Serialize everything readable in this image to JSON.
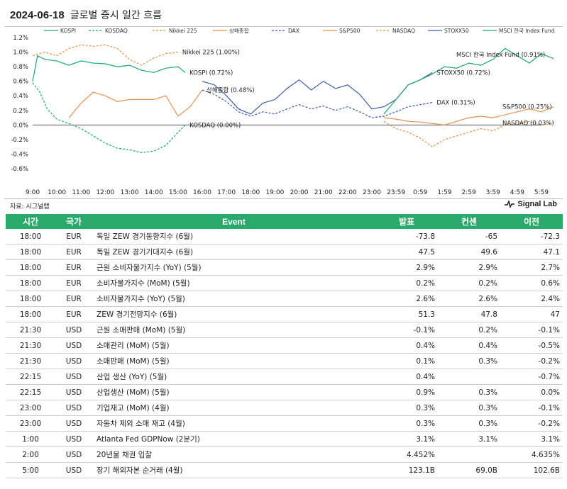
{
  "header": {
    "date": "2024-06-18",
    "title": "글로벌 증시 일간 흐름"
  },
  "source": "자료: 시그널랩",
  "brand": "Signal Lab",
  "chart_data": {
    "type": "line",
    "legend": [
      "KOSPI",
      "KOSDAQ",
      "Nikkei 225",
      "상해종합",
      "DAX",
      "S&P500",
      "NASDAQ",
      "STOXX50",
      "MSCI 한국 Index Fund"
    ],
    "colors": {
      "KOSPI": "#17a873",
      "KOSDAQ": "#17a873",
      "Nikkei 225": "#e3914e",
      "상해종합": "#e3914e",
      "DAX": "#3d5ba8",
      "S&P500": "#e3914e",
      "NASDAQ": "#e3914e",
      "STOXX50": "#3d5ba8",
      "MSCI 한국 Index Fund": "#17a873"
    },
    "x_ticks": [
      "9:00",
      "10:00",
      "11:00",
      "12:00",
      "13:00",
      "14:00",
      "15:00",
      "16:00",
      "17:00",
      "18:00",
      "19:00",
      "20:00",
      "21:00",
      "22:00",
      "23:00",
      "23:59",
      "0:59",
      "1:59",
      "2:59",
      "3:59",
      "4:59",
      "5:59"
    ],
    "y_ticks": [
      "1.2%",
      "1.0%",
      "0.8%",
      "0.6%",
      "0.4%",
      "0.2%",
      "0.0%",
      "-0.2%",
      "-0.4%",
      "-0.6%"
    ],
    "ylim": [
      -0.6,
      1.2
    ],
    "end_labels": [
      "Nikkei 225 (1.00%)",
      "KOSPI (0.72%)",
      "상해종합 (0.48%)",
      "KOSDAQ (0.00%)",
      "MSCI 한국 Index Fund (0.91%)",
      "STOXX50 (0.72%)",
      "DAX (0.31%)",
      "S&P500 (0.25%)",
      "NASDAQ (0.03%)"
    ],
    "series": [
      {
        "name": "KOSPI",
        "x": [
          0,
          0.2,
          0.5,
          1,
          1.5,
          2,
          2.5,
          3,
          3.5,
          4,
          4.5,
          5,
          5.5,
          6,
          6.3
        ],
        "y": [
          0.6,
          0.95,
          0.9,
          0.88,
          0.82,
          0.88,
          0.85,
          0.84,
          0.8,
          0.82,
          0.75,
          0.72,
          0.78,
          0.8,
          0.72
        ]
      },
      {
        "name": "KOSDAQ",
        "x": [
          0,
          0.3,
          0.6,
          1,
          1.5,
          2,
          2.5,
          3,
          3.5,
          4,
          4.5,
          5,
          5.5,
          6,
          6.3
        ],
        "y": [
          0.58,
          0.45,
          0.22,
          0.08,
          0.02,
          -0.05,
          -0.15,
          -0.25,
          -0.32,
          -0.34,
          -0.38,
          -0.36,
          -0.28,
          -0.1,
          0.0
        ]
      },
      {
        "name": "Nikkei 225",
        "x": [
          0,
          0.5,
          1,
          1.5,
          2,
          2.5,
          3,
          3.5,
          4,
          4.5,
          5,
          5.5,
          6
        ],
        "y": [
          0.95,
          1.0,
          0.95,
          1.05,
          1.1,
          1.08,
          1.1,
          1.05,
          0.9,
          0.82,
          0.92,
          0.98,
          1.0
        ]
      },
      {
        "name": "상해종합",
        "x": [
          1.5,
          2,
          2.5,
          3,
          3.5,
          4,
          4.5,
          5,
          5.5,
          6,
          6.5,
          7
        ],
        "y": [
          0.1,
          0.3,
          0.45,
          0.4,
          0.32,
          0.35,
          0.35,
          0.35,
          0.4,
          0.12,
          0.25,
          0.48
        ]
      },
      {
        "name": "DAX",
        "x": [
          7,
          7.5,
          8,
          8.5,
          9,
          9.5,
          10,
          10.5,
          11,
          11.5,
          12,
          12.5,
          13,
          13.5,
          14,
          14.5,
          15,
          15.5,
          16,
          16.5
        ],
        "y": [
          0.48,
          0.42,
          0.32,
          0.18,
          0.12,
          0.18,
          0.15,
          0.22,
          0.28,
          0.22,
          0.26,
          0.2,
          0.25,
          0.18,
          0.1,
          0.12,
          0.18,
          0.25,
          0.28,
          0.31
        ]
      },
      {
        "name": "STOXX50",
        "x": [
          7,
          7.5,
          8,
          8.5,
          9,
          9.5,
          10,
          10.5,
          11,
          11.5,
          12,
          12.5,
          13,
          13.5,
          14,
          14.5,
          15,
          15.5,
          16,
          16.5
        ],
        "y": [
          0.6,
          0.55,
          0.4,
          0.22,
          0.15,
          0.3,
          0.35,
          0.5,
          0.62,
          0.48,
          0.6,
          0.5,
          0.55,
          0.42,
          0.22,
          0.25,
          0.35,
          0.55,
          0.62,
          0.72
        ]
      },
      {
        "name": "S&P500",
        "x": [
          14.5,
          15,
          15.5,
          16,
          16.5,
          17,
          17.5,
          18,
          18.5,
          19,
          19.5,
          20,
          20.5,
          21,
          21.5
        ],
        "y": [
          0.1,
          0.08,
          0.05,
          0.04,
          0.02,
          0.0,
          0.05,
          0.1,
          0.12,
          0.1,
          0.14,
          0.18,
          0.22,
          0.18,
          0.25
        ]
      },
      {
        "name": "NASDAQ",
        "x": [
          14.5,
          15,
          15.5,
          16,
          16.5,
          17,
          17.5,
          18,
          18.5,
          19,
          19.5,
          20,
          20.5,
          21,
          21.5
        ],
        "y": [
          0.05,
          -0.05,
          -0.1,
          -0.18,
          -0.3,
          -0.2,
          -0.15,
          -0.1,
          -0.05,
          -0.08,
          0.0,
          0.02,
          0.05,
          0.0,
          0.03
        ]
      },
      {
        "name": "MSCI 한국 Index Fund",
        "x": [
          14.5,
          15,
          15.5,
          16,
          16.5,
          17,
          17.5,
          18,
          18.5,
          19,
          19.5,
          20,
          20.5,
          21,
          21.5
        ],
        "y": [
          0.15,
          0.35,
          0.55,
          0.62,
          0.7,
          0.8,
          0.78,
          0.85,
          0.82,
          0.9,
          1.05,
          0.95,
          0.85,
          0.98,
          0.91
        ]
      }
    ]
  },
  "table": {
    "headers": [
      "시간",
      "국가",
      "Event",
      "발표",
      "컨센",
      "이전"
    ],
    "rows": [
      [
        "18:00",
        "EUR",
        "독일 ZEW 경기동향지수 (6월)",
        "-73.8",
        "-65",
        "-72.3"
      ],
      [
        "18:00",
        "EUR",
        "독일 ZEW 경기기대지수 (6월)",
        "47.5",
        "49.6",
        "47.1"
      ],
      [
        "18:00",
        "EUR",
        "근원 소비자물가지수 (YoY) (5월)",
        "2.9%",
        "2.9%",
        "2.7%"
      ],
      [
        "18:00",
        "EUR",
        "소비자물가지수 (MoM) (5월)",
        "0.2%",
        "0.2%",
        "0.6%"
      ],
      [
        "18:00",
        "EUR",
        "소비자물가지수 (YoY) (5월)",
        "2.6%",
        "2.6%",
        "2.4%"
      ],
      [
        "18:00",
        "EUR",
        "ZEW 경기전망지수 (6월)",
        "51.3",
        "47.8",
        "47"
      ],
      [
        "21:30",
        "USD",
        "근원 소매판매 (MoM) (5월)",
        "-0.1%",
        "0.2%",
        "-0.1%"
      ],
      [
        "21:30",
        "USD",
        "소매관리 (MoM) (5월)",
        "0.4%",
        "0.4%",
        "-0.5%"
      ],
      [
        "21:30",
        "USD",
        "소매판매 (MoM) (5월)",
        "0.1%",
        "0.3%",
        "-0.2%"
      ],
      [
        "22:15",
        "USD",
        "산업 생산 (YoY) (5월)",
        "0.4%",
        "",
        "-0.7%"
      ],
      [
        "22:15",
        "USD",
        "산업생산 (MoM) (5월)",
        "0.9%",
        "0.3%",
        "0.0%"
      ],
      [
        "23:00",
        "USD",
        "기업재고 (MoM) (4월)",
        "0.3%",
        "0.3%",
        "-0.1%"
      ],
      [
        "23:00",
        "USD",
        "자동차 제외 소매 재고 (4월)",
        "0.3%",
        "0.3%",
        "-0.2%"
      ],
      [
        "1:00",
        "USD",
        "Atlanta Fed GDPNow (2분기)",
        "3.1%",
        "3.1%",
        "3.1%"
      ],
      [
        "2:00",
        "USD",
        "20년물 채권 입찰",
        "4.452%",
        "",
        "4.635%"
      ],
      [
        "5:00",
        "USD",
        "장기 해외자본 순거래 (4월)",
        "123.1B",
        "69.0B",
        "102.6B"
      ]
    ]
  }
}
